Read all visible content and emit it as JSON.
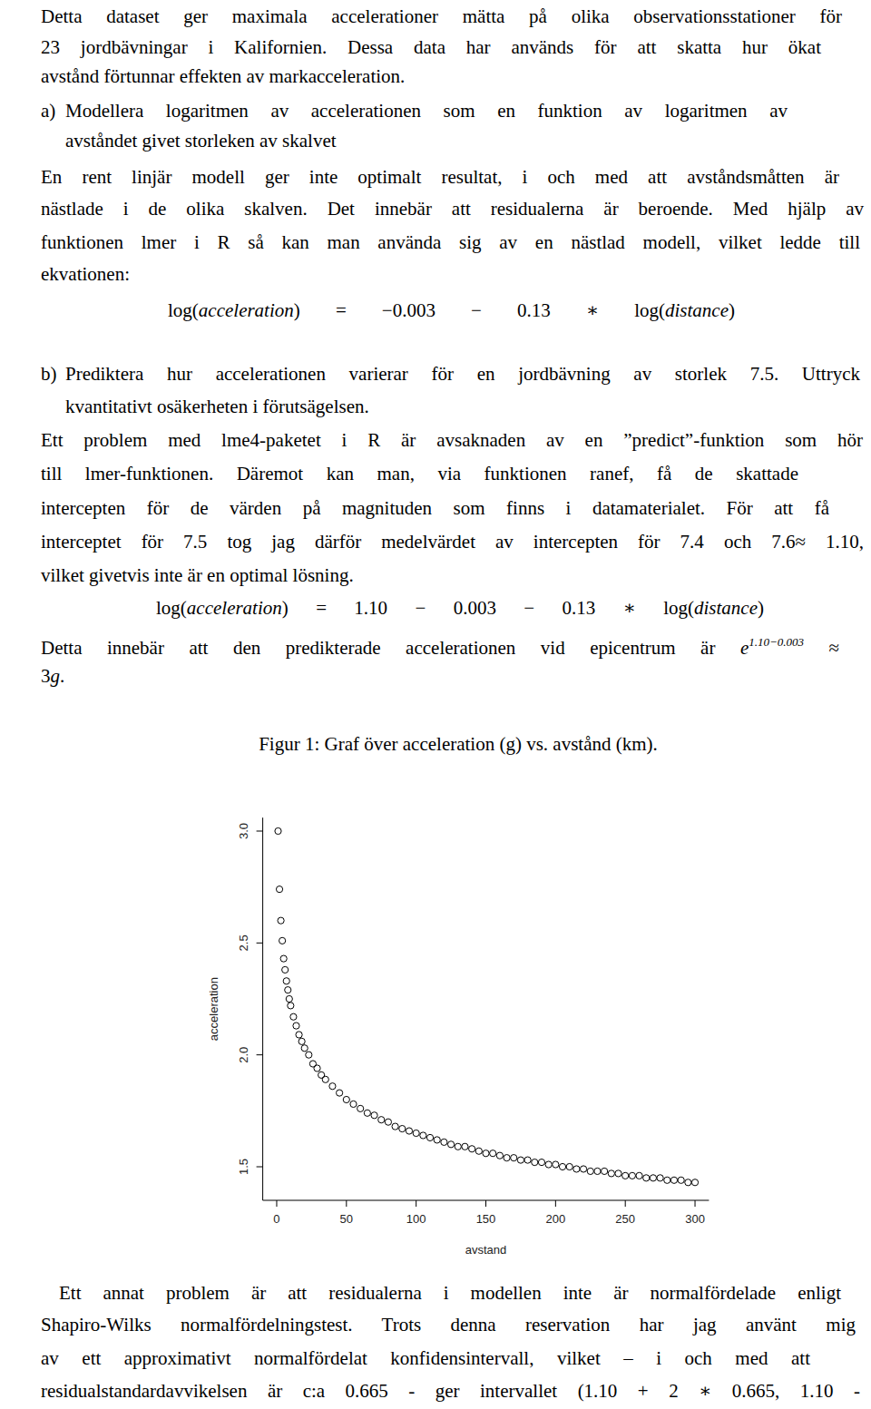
{
  "document": {
    "intro": [
      "Detta dataset ger maximala accelerationer mätta på olika observationsstationer för",
      "23 jordbävningar i Kalifornien. Dessa data har används för att skatta hur ökat",
      "avstånd förtunnar effekten av markacceleration."
    ],
    "part_a": {
      "label": "a)",
      "heading": [
        "Modellera logaritmen av accelerationen som en funktion av logaritmen av",
        "avståndet givet storleken av skalvet"
      ],
      "body": [
        "En rent linjär modell ger inte optimalt resultat, i och med att avståndsmåtten är",
        "nästlade i de olika skalven. Det innebär att residualerna är beroende. Med hjälp av",
        "funktionen lmer i R så kan man använda sig av en nästlad modell, vilket ledde till",
        "ekvationen:"
      ],
      "equation": [
        {
          "text": "log("
        },
        {
          "text": "acceleration",
          "math": true
        },
        {
          "text": ") = −0.003 − 0.13 ∗ log("
        },
        {
          "text": "distance",
          "math": true
        },
        {
          "text": ")"
        }
      ]
    },
    "part_b": {
      "label": "b)",
      "heading": [
        "Prediktera hur accelerationen varierar för en jordbävning av storlek 7.5. Uttryck",
        "kvantitativt osäkerheten i förutsägelsen."
      ],
      "body": [
        "Ett problem med lme4-paketet i R är avsaknaden av en ”predict”-funktion som hör",
        "till lmer-funktionen. Däremot kan man, via funktionen ranef, få de skattade",
        "intercepten för de värden på magnituden som finns i datamaterialet. För att få",
        "interceptet för 7.5 tog jag därför medelvärdet av intercepten för 7.4 och 7.6≈ 1.10,",
        "vilket givetvis inte är en optimal lösning."
      ],
      "equation": [
        {
          "text": "log("
        },
        {
          "text": "acceleration",
          "math": true
        },
        {
          "text": ") = 1.10 − 0.003 − 0.13 ∗ log("
        },
        {
          "text": "distance",
          "math": true
        },
        {
          "text": ")"
        }
      ],
      "conclusion": [
        [
          {
            "text": "Detta innebär att den predikterade accelerationen vid epicentrum är "
          },
          {
            "text": "e",
            "math": true
          },
          {
            "text": "1.10−0.003",
            "sup": true
          },
          {
            "text": " ≈"
          }
        ],
        [
          {
            "text": "3"
          },
          {
            "text": "g",
            "math": true
          },
          {
            "text": "."
          }
        ]
      ]
    },
    "figure_caption": "Figur 1: Graf över acceleration (g) vs. avstånd (km).",
    "closing": [
      "Ett annat problem är att residualerna i modellen inte är normalfördelade enligt",
      "Shapiro-Wilks normalfördelningstest. Trots denna reservation har jag använt mig",
      "av ett approximativt normalfördelat konfidensintervall, vilket – i och med att",
      "residualstandardavvikelsen är c:a 0.665 - ger intervallet (1.10 + 2 ∗ 0.665, 1.10 -"
    ]
  },
  "chart_data": {
    "type": "scatter",
    "xlabel": "avstand",
    "ylabel": "acceleration",
    "marker": "circle",
    "grid": false,
    "color": "#000000",
    "xlim": [
      -10,
      310
    ],
    "ylim": [
      1.35,
      3.06
    ],
    "xticks": [
      0,
      50,
      100,
      150,
      200,
      250,
      300
    ],
    "yticks": [
      1.5,
      {
        "value": 2,
        "label": "2.0"
      },
      2.5,
      {
        "value": 3,
        "label": "3.0"
      }
    ],
    "x": [
      1,
      2,
      3,
      4,
      5,
      6,
      7,
      8,
      9,
      10,
      12,
      14,
      16,
      18,
      20,
      23,
      26,
      29,
      32,
      35,
      40,
      45,
      50,
      55,
      60,
      65,
      70,
      75,
      80,
      85,
      90,
      95,
      100,
      105,
      110,
      115,
      120,
      125,
      130,
      135,
      140,
      145,
      150,
      155,
      160,
      165,
      170,
      175,
      180,
      185,
      190,
      195,
      200,
      205,
      210,
      215,
      220,
      225,
      230,
      235,
      240,
      245,
      250,
      255,
      260,
      265,
      270,
      275,
      280,
      285,
      290,
      295,
      300
    ],
    "values": [
      3.0,
      2.74,
      2.6,
      2.51,
      2.43,
      2.38,
      2.33,
      2.29,
      2.25,
      2.22,
      2.17,
      2.13,
      2.09,
      2.06,
      2.03,
      2.0,
      1.96,
      1.94,
      1.91,
      1.89,
      1.86,
      1.83,
      1.8,
      1.78,
      1.76,
      1.74,
      1.73,
      1.71,
      1.7,
      1.68,
      1.67,
      1.66,
      1.65,
      1.64,
      1.63,
      1.62,
      1.61,
      1.6,
      1.59,
      1.59,
      1.58,
      1.57,
      1.56,
      1.56,
      1.55,
      1.54,
      1.54,
      1.53,
      1.53,
      1.52,
      1.52,
      1.51,
      1.51,
      1.5,
      1.5,
      1.49,
      1.49,
      1.48,
      1.48,
      1.48,
      1.47,
      1.47,
      1.46,
      1.46,
      1.46,
      1.45,
      1.45,
      1.45,
      1.44,
      1.44,
      1.44,
      1.43,
      1.43
    ]
  }
}
